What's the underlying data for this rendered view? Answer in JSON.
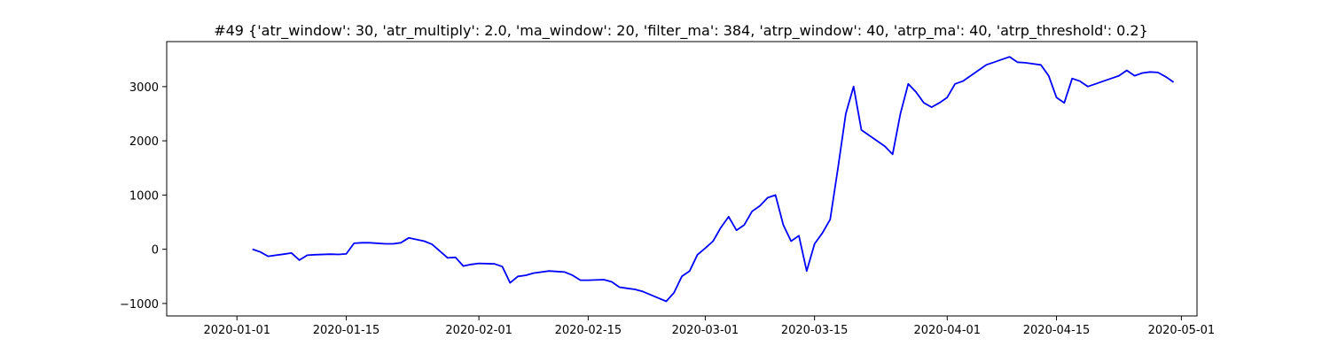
{
  "chart_data": {
    "type": "line",
    "title": "#49 {'atr_window': 30, 'atr_multiply': 2.0, 'ma_window': 20, 'filter_ma': 384, 'atrp_window': 40, 'atrp_ma': 40, 'atrp_threshold': 0.2}",
    "xlabel": "",
    "ylabel": "",
    "x_type": "date",
    "xlim": [
      "2019-12-23",
      "2020-05-03"
    ],
    "ylim": [
      -1230,
      3830
    ],
    "grid": false,
    "legend": "none",
    "line_color": "#0000ff",
    "x_ticks": [
      {
        "value": "2020-01-01",
        "label": "2020-01-01"
      },
      {
        "value": "2020-01-15",
        "label": "2020-01-15"
      },
      {
        "value": "2020-02-01",
        "label": "2020-02-01"
      },
      {
        "value": "2020-02-15",
        "label": "2020-02-15"
      },
      {
        "value": "2020-03-01",
        "label": "2020-03-01"
      },
      {
        "value": "2020-03-15",
        "label": "2020-03-15"
      },
      {
        "value": "2020-04-01",
        "label": "2020-04-01"
      },
      {
        "value": "2020-04-15",
        "label": "2020-04-15"
      },
      {
        "value": "2020-05-01",
        "label": "2020-05-01"
      }
    ],
    "y_ticks": [
      {
        "value": -1000,
        "label": "−1000"
      },
      {
        "value": 0,
        "label": "0"
      },
      {
        "value": 1000,
        "label": "1000"
      },
      {
        "value": 2000,
        "label": "2000"
      },
      {
        "value": 3000,
        "label": "3000"
      }
    ],
    "series": [
      {
        "x": [
          "2020-01-03",
          "2020-01-04",
          "2020-01-05",
          "2020-01-06",
          "2020-01-07",
          "2020-01-08",
          "2020-01-09",
          "2020-01-10",
          "2020-01-11",
          "2020-01-13",
          "2020-01-14",
          "2020-01-15",
          "2020-01-16",
          "2020-01-17",
          "2020-01-18",
          "2020-01-20",
          "2020-01-21",
          "2020-01-22",
          "2020-01-23",
          "2020-01-24",
          "2020-01-25",
          "2020-01-26",
          "2020-01-28",
          "2020-01-29",
          "2020-01-30",
          "2020-01-31",
          "2020-02-01",
          "2020-02-03",
          "2020-02-04",
          "2020-02-05",
          "2020-02-06",
          "2020-02-07",
          "2020-02-08",
          "2020-02-10",
          "2020-02-11",
          "2020-02-12",
          "2020-02-13",
          "2020-02-14",
          "2020-02-15",
          "2020-02-17",
          "2020-02-18",
          "2020-02-19",
          "2020-02-20",
          "2020-02-21",
          "2020-02-22",
          "2020-02-24",
          "2020-02-25",
          "2020-02-26",
          "2020-02-27",
          "2020-02-28",
          "2020-02-29",
          "2020-03-01",
          "2020-03-02",
          "2020-03-03",
          "2020-03-04",
          "2020-03-05",
          "2020-03-06",
          "2020-03-07",
          "2020-03-08",
          "2020-03-09",
          "2020-03-10",
          "2020-03-11",
          "2020-03-12",
          "2020-03-13",
          "2020-03-14",
          "2020-03-15",
          "2020-03-16",
          "2020-03-17",
          "2020-03-18",
          "2020-03-19",
          "2020-03-20",
          "2020-03-21",
          "2020-03-22",
          "2020-03-23",
          "2020-03-24",
          "2020-03-25",
          "2020-03-26",
          "2020-03-27",
          "2020-03-28",
          "2020-03-29",
          "2020-03-30",
          "2020-03-31",
          "2020-04-01",
          "2020-04-02",
          "2020-04-03",
          "2020-04-04",
          "2020-04-05",
          "2020-04-06",
          "2020-04-07",
          "2020-04-08",
          "2020-04-09",
          "2020-04-10",
          "2020-04-11",
          "2020-04-12",
          "2020-04-13",
          "2020-04-14",
          "2020-04-15",
          "2020-04-16",
          "2020-04-17",
          "2020-04-18",
          "2020-04-19",
          "2020-04-20",
          "2020-04-21",
          "2020-04-22",
          "2020-04-23",
          "2020-04-24",
          "2020-04-25",
          "2020-04-26",
          "2020-04-27",
          "2020-04-28",
          "2020-04-29",
          "2020-04-30"
        ],
        "values": [
          0,
          -50,
          -130,
          -110,
          -90,
          -70,
          -200,
          -110,
          -100,
          -90,
          -95,
          -85,
          110,
          120,
          120,
          100,
          100,
          120,
          210,
          180,
          150,
          90,
          -160,
          -150,
          -310,
          -280,
          -260,
          -270,
          -320,
          -620,
          -500,
          -480,
          -440,
          -400,
          -410,
          -420,
          -480,
          -570,
          -570,
          -560,
          -600,
          -700,
          -720,
          -740,
          -780,
          -900,
          -960,
          -800,
          -500,
          -400,
          -100,
          20,
          150,
          400,
          600,
          350,
          450,
          700,
          800,
          950,
          1000,
          450,
          150,
          250,
          -400,
          100,
          300,
          550,
          1500,
          2500,
          3000,
          2200,
          2100,
          2000,
          1900,
          1750,
          2500,
          3050,
          2900,
          2700,
          2620,
          2700,
          2800,
          3050,
          3100,
          3200,
          3300,
          3400,
          3450,
          3500,
          3550,
          3450,
          3440,
          3420,
          3400,
          3200,
          2800,
          2700,
          3150,
          3100,
          3000,
          3050,
          3100,
          3150,
          3200,
          3300,
          3200,
          3250,
          3270,
          3260,
          3180,
          3080
        ]
      }
    ]
  }
}
